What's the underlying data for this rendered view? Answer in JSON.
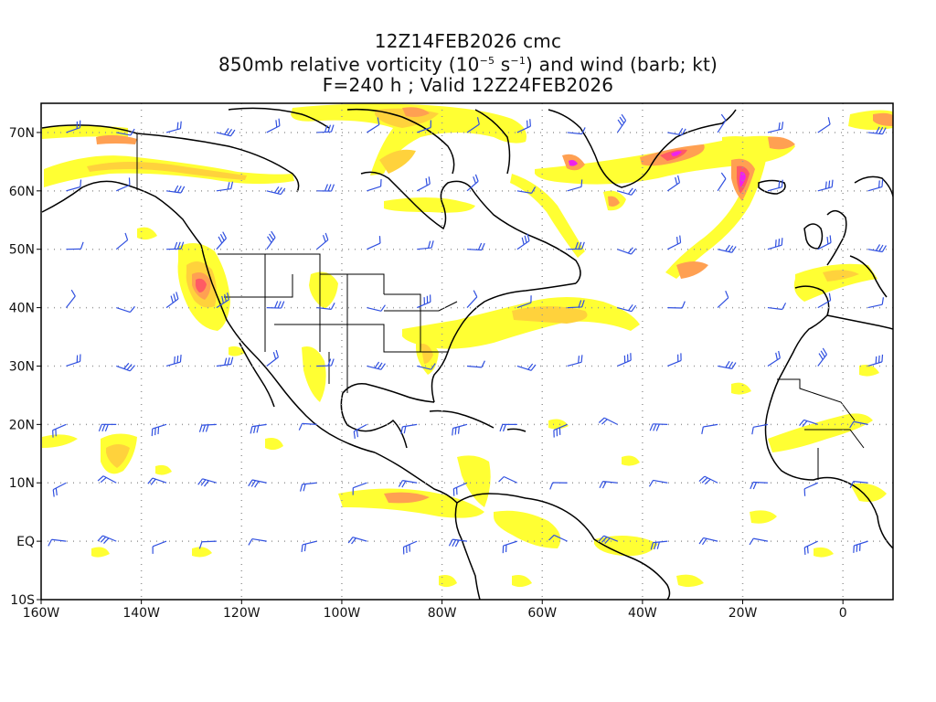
{
  "title": {
    "line1": "12Z14FEB2026 cmc",
    "line2_pre": "850mb relative vorticity (10",
    "line2_exp1": "−5",
    "line2_mid": " s",
    "line2_exp2": "−1",
    "line2_post": ") and wind (barb; kt)",
    "line3": "F=240 h ; Valid 12Z24FEB2026"
  },
  "map": {
    "region": "North Atlantic / North America",
    "lon_range": [
      -160,
      10
    ],
    "lat_range": [
      -10,
      75
    ],
    "lat_labels": [
      "70N",
      "60N",
      "50N",
      "40N",
      "30N",
      "20N",
      "10N",
      "EQ",
      "10S"
    ],
    "lon_labels": [
      "160W",
      "140W",
      "120W",
      "100W",
      "80W",
      "60W",
      "40W",
      "20W",
      "0"
    ],
    "gridlines": "dotted",
    "vorticity_colors": [
      "#ffff33",
      "#ffd23c",
      "#ffa052",
      "#ff5a64",
      "#ff2e9a",
      "#ee22ee"
    ],
    "coast_color": "#000000",
    "barb_color": "#3050e0"
  }
}
